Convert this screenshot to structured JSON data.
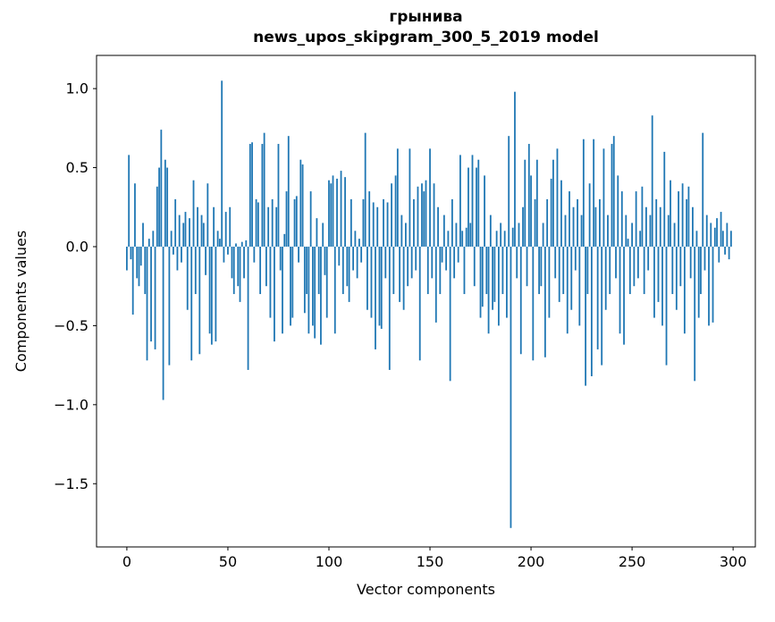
{
  "chart_data": {
    "type": "bar",
    "title": "грынива",
    "subtitle": "news_upos_skipgram_300_5_2019 model",
    "xlabel": "Vector components",
    "ylabel": "Components values",
    "xlim": [
      -15,
      311
    ],
    "ylim": [
      -1.9,
      1.21
    ],
    "xticks": [
      0,
      50,
      100,
      150,
      200,
      250,
      300
    ],
    "yticks": [
      1.0,
      0.5,
      0.0,
      -0.5,
      -1.0,
      -1.5
    ],
    "grid": false,
    "legend": "none",
    "bar_color": "#1f77b4",
    "axis_color": "#000000",
    "n_components": 300,
    "values": [
      -0.15,
      0.58,
      -0.08,
      -0.43,
      0.4,
      -0.2,
      -0.25,
      -0.12,
      0.15,
      -0.3,
      -0.72,
      0.05,
      -0.6,
      0.1,
      -0.65,
      0.38,
      0.5,
      0.74,
      -0.97,
      0.55,
      0.5,
      -0.75,
      0.1,
      -0.05,
      0.3,
      -0.15,
      0.2,
      -0.1,
      0.15,
      0.22,
      -0.4,
      0.18,
      -0.72,
      0.42,
      -0.3,
      0.25,
      -0.68,
      0.2,
      0.15,
      -0.18,
      0.4,
      -0.55,
      -0.62,
      0.25,
      -0.6,
      0.1,
      0.05,
      1.05,
      -0.1,
      0.22,
      -0.05,
      0.25,
      -0.2,
      -0.3,
      0.02,
      -0.25,
      -0.35,
      0.03,
      -0.2,
      0.04,
      -0.78,
      0.65,
      0.66,
      -0.1,
      0.3,
      0.28,
      -0.3,
      0.65,
      0.72,
      -0.25,
      0.25,
      -0.45,
      0.3,
      -0.6,
      0.25,
      0.65,
      -0.15,
      -0.55,
      0.08,
      0.35,
      0.7,
      -0.5,
      -0.45,
      0.3,
      0.32,
      -0.1,
      0.55,
      0.52,
      -0.42,
      -0.3,
      -0.55,
      0.35,
      -0.5,
      -0.58,
      0.18,
      -0.3,
      -0.62,
      0.15,
      -0.18,
      -0.45,
      0.42,
      0.4,
      0.45,
      -0.55,
      0.43,
      -0.12,
      0.48,
      -0.3,
      0.44,
      -0.25,
      -0.35,
      0.3,
      -0.15,
      0.1,
      -0.2,
      0.05,
      -0.1,
      0.3,
      0.72,
      -0.4,
      0.35,
      -0.45,
      0.28,
      -0.65,
      0.25,
      -0.5,
      -0.52,
      0.3,
      -0.2,
      0.28,
      -0.78,
      0.4,
      -0.3,
      0.45,
      0.62,
      -0.35,
      0.2,
      -0.4,
      0.15,
      -0.25,
      0.62,
      -0.2,
      0.3,
      -0.15,
      0.38,
      -0.72,
      0.4,
      0.35,
      0.42,
      -0.3,
      0.62,
      -0.2,
      0.4,
      -0.48,
      0.25,
      -0.3,
      -0.1,
      0.2,
      -0.15,
      0.1,
      -0.85,
      0.3,
      -0.2,
      0.15,
      -0.1,
      0.58,
      0.1,
      -0.3,
      0.12,
      0.5,
      0.15,
      0.58,
      -0.25,
      0.5,
      0.55,
      -0.45,
      -0.38,
      0.45,
      -0.3,
      -0.55,
      0.2,
      -0.4,
      -0.35,
      0.1,
      -0.5,
      0.15,
      -0.3,
      0.1,
      -0.45,
      0.7,
      -1.78,
      0.12,
      0.98,
      -0.2,
      0.15,
      -0.68,
      0.25,
      0.55,
      -0.25,
      0.65,
      0.45,
      -0.72,
      0.3,
      0.55,
      -0.3,
      -0.25,
      0.15,
      -0.7,
      0.3,
      -0.45,
      0.43,
      0.55,
      -0.2,
      0.62,
      -0.35,
      0.42,
      -0.3,
      0.2,
      -0.55,
      0.35,
      -0.4,
      0.25,
      -0.15,
      0.3,
      -0.5,
      0.2,
      0.68,
      -0.88,
      -0.3,
      0.4,
      -0.82,
      0.68,
      0.25,
      -0.65,
      0.3,
      -0.75,
      0.62,
      -0.4,
      0.2,
      -0.3,
      0.65,
      0.7,
      -0.2,
      0.45,
      -0.55,
      0.35,
      -0.62,
      0.2,
      0.05,
      -0.3,
      0.15,
      -0.25,
      0.35,
      -0.2,
      0.1,
      0.38,
      -0.3,
      0.25,
      -0.15,
      0.2,
      0.83,
      -0.45,
      0.3,
      -0.35,
      0.25,
      -0.5,
      0.6,
      -0.75,
      0.2,
      0.42,
      -0.3,
      0.15,
      -0.4,
      0.35,
      -0.25,
      0.4,
      -0.55,
      0.3,
      0.38,
      -0.2,
      0.25,
      -0.85,
      0.1,
      -0.45,
      -0.3,
      0.72,
      -0.15,
      0.2,
      -0.5,
      0.15,
      -0.48,
      0.12,
      0.18,
      -0.1,
      0.22,
      0.1,
      -0.05,
      0.15,
      -0.08,
      0.1
    ]
  }
}
